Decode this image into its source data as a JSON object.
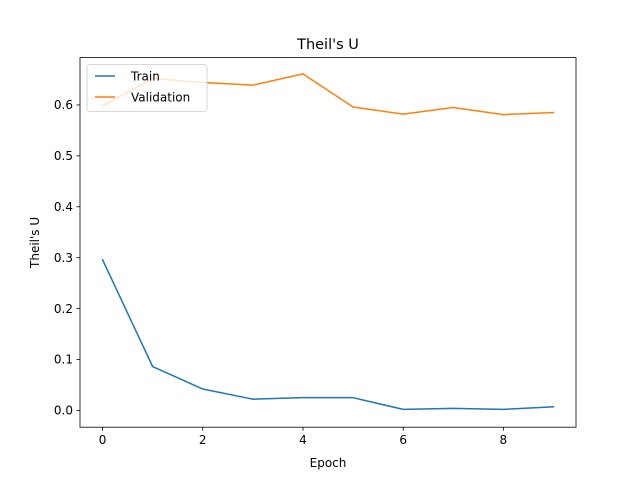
{
  "chart_data": {
    "type": "line",
    "title": "Theil's U",
    "xlabel": "Epoch",
    "ylabel": "Theil's U",
    "x": [
      0,
      1,
      2,
      3,
      4,
      5,
      6,
      7,
      8,
      9
    ],
    "xlim": [
      -0.45,
      9.45
    ],
    "ylim": [
      -0.033,
      0.693
    ],
    "xticks": [
      0,
      2,
      4,
      6,
      8
    ],
    "xtick_labels": [
      "0",
      "2",
      "4",
      "6",
      "8"
    ],
    "yticks": [
      0.0,
      0.1,
      0.2,
      0.3,
      0.4,
      0.5,
      0.6
    ],
    "ytick_labels": [
      "0.0",
      "0.1",
      "0.2",
      "0.3",
      "0.4",
      "0.5",
      "0.6"
    ],
    "grid": false,
    "legend_position": "upper left",
    "series": [
      {
        "name": "Train",
        "color": "#1f77b4",
        "values": [
          0.296,
          0.086,
          0.042,
          0.022,
          0.025,
          0.025,
          0.002,
          0.004,
          0.002,
          0.007
        ]
      },
      {
        "name": "Validation",
        "color": "#ff7f0e",
        "values": [
          0.598,
          0.652,
          0.644,
          0.639,
          0.661,
          0.596,
          0.582,
          0.595,
          0.581,
          0.585
        ]
      }
    ]
  }
}
